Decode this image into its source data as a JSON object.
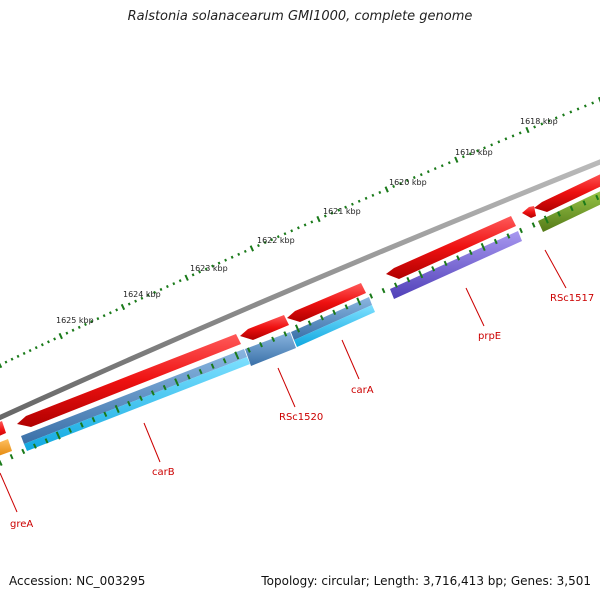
{
  "title": "Ralstonia solanacearum GMI1000, complete genome",
  "footer": {
    "accession": "Accession: NC_003295",
    "topology": "Topology: circular; Length: 3,716,413 bp; Genes: 3,501"
  },
  "colors": {
    "backbone": "#8a8a8a",
    "ticks": "#1a7a1a",
    "label": "#cc0000",
    "forward_gene": "#ee1111",
    "carB_cds": "#4a86c0",
    "carB_cds2": "#22bbee",
    "rsc1520_cds": "#4a86c0",
    "carA_cds": "#22bbee",
    "prpE_cds": "#7060d0",
    "rsc1517_cds": "#6a9a20",
    "greA_cds": "#ff9900"
  },
  "scale_labels": [
    "1618 kbp",
    "1619 kbp",
    "1620 kbp",
    "1621 kbp",
    "1622 kbp",
    "1623 kbp",
    "1624 kbp",
    "1625 kbp"
  ],
  "gene_labels": [
    {
      "name": "greA"
    },
    {
      "name": "carB"
    },
    {
      "name": "RSc1520"
    },
    {
      "name": "carA"
    },
    {
      "name": "prpE"
    },
    {
      "name": "RSc1517"
    }
  ]
}
